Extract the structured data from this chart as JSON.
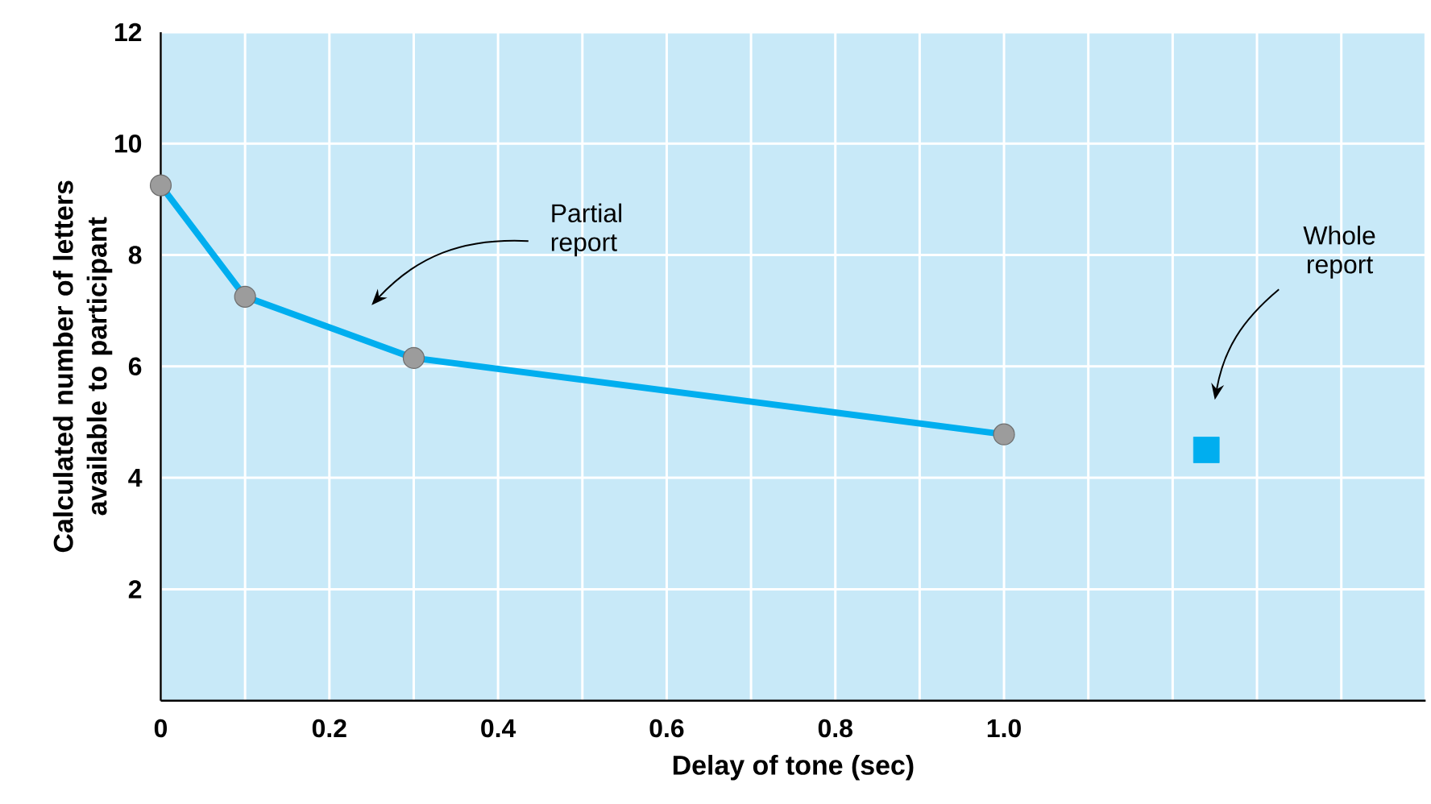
{
  "chart_data": {
    "type": "line",
    "xlabel": "Delay of tone (sec)",
    "ylabel": "Calculated number of letters available to participant",
    "series": [
      {
        "color": "#00aeef",
        "marker": "circle",
        "x": [
          0,
          0.1,
          0.3,
          1.0
        ],
        "values": [
          9.25,
          7.25,
          6.15,
          4.78
        ]
      },
      {
        "type": "scatter",
        "color": "#00aeef",
        "marker": "square",
        "x": [
          1.24
        ],
        "values": [
          4.5
        ]
      }
    ],
    "xlim": [
      0,
      1.5
    ],
    "ylim": [
      0,
      12
    ],
    "xticks": [
      0,
      {
        "value": 0.1,
        "label": null
      },
      0.2,
      {
        "value": 0.3,
        "label": null
      },
      0.4,
      {
        "value": 0.5,
        "label": null
      },
      0.6,
      {
        "value": 0.7,
        "label": null
      },
      0.8,
      {
        "value": 0.9,
        "label": null
      },
      {
        "value": 1,
        "label": "1.0"
      },
      {
        "value": 1.1,
        "label": null
      },
      {
        "value": 1.2,
        "label": null
      },
      {
        "value": 1.3,
        "label": null
      },
      {
        "value": 1.4,
        "label": null
      },
      {
        "value": 1.5,
        "label": null
      }
    ],
    "yticks": [
      2,
      4,
      6,
      8,
      10,
      12
    ],
    "grid": true,
    "annotations": [
      "Partial report",
      "Whole report"
    ]
  }
}
